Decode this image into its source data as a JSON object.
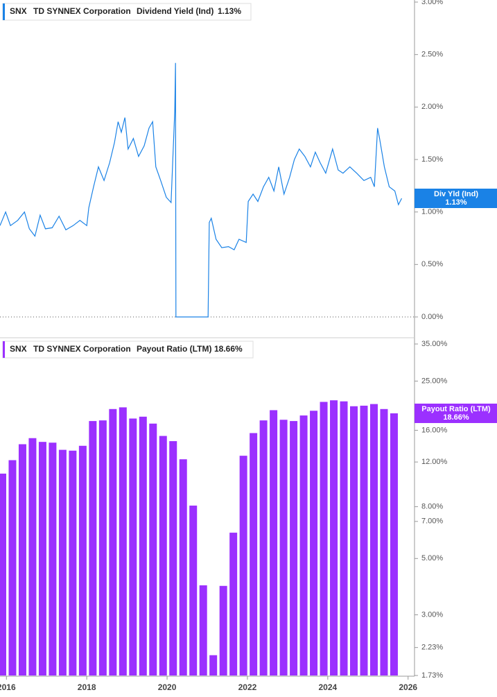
{
  "chart_data": [
    {
      "type": "line",
      "ticker": "SNX",
      "company": "TD SYNNEX Corporation",
      "x": [
        2015.84,
        2015.98,
        2016.1,
        2016.28,
        2016.45,
        2016.57,
        2016.71,
        2016.84,
        2016.97,
        2017.14,
        2017.31,
        2017.48,
        2017.66,
        2017.83,
        2018.0,
        2018.05,
        2018.17,
        2018.29,
        2018.43,
        2018.57,
        2018.69,
        2018.78,
        2018.86,
        2018.95,
        2019.03,
        2019.16,
        2019.29,
        2019.43,
        2019.55,
        2019.64,
        2019.72,
        2019.84,
        2019.98,
        2020.1,
        2020.19,
        2020.21,
        2020.22,
        2021.02,
        2021.05,
        2021.1,
        2021.22,
        2021.36,
        2021.53,
        2021.67,
        2021.79,
        2021.97,
        2022.02,
        2022.14,
        2022.26,
        2022.4,
        2022.53,
        2022.66,
        2022.78,
        2022.91,
        2023.05,
        2023.17,
        2023.29,
        2023.43,
        2023.57,
        2023.69,
        2023.81,
        2023.95,
        2024.12,
        2024.26,
        2024.38,
        2024.55,
        2024.72,
        2024.9,
        2025.07,
        2025.16,
        2025.24,
        2025.29,
        2025.41,
        2025.53,
        2025.67,
        2025.76,
        2025.84
      ],
      "series": [
        {
          "name": "Dividend Yield (Ind)",
          "short_name": "Div Yld (Ind)",
          "color": "#1a82e6",
          "last_value_label": "1.13%",
          "values": [
            0.87,
            1.0,
            0.87,
            0.92,
            1.0,
            0.84,
            0.77,
            0.97,
            0.84,
            0.85,
            0.96,
            0.83,
            0.87,
            0.92,
            0.87,
            1.04,
            1.24,
            1.43,
            1.3,
            1.47,
            1.66,
            1.86,
            1.76,
            1.9,
            1.6,
            1.7,
            1.53,
            1.63,
            1.8,
            1.86,
            1.43,
            1.3,
            1.14,
            1.09,
            1.96,
            2.42,
            0,
            0,
            0.9,
            0.94,
            0.74,
            0.66,
            0.67,
            0.64,
            0.74,
            0.71,
            1.1,
            1.17,
            1.1,
            1.24,
            1.33,
            1.2,
            1.43,
            1.17,
            1.33,
            1.5,
            1.6,
            1.53,
            1.43,
            1.57,
            1.47,
            1.37,
            1.6,
            1.4,
            1.37,
            1.43,
            1.37,
            1.3,
            1.33,
            1.24,
            1.8,
            1.7,
            1.43,
            1.24,
            1.2,
            1.07,
            1.13
          ]
        }
      ],
      "xlim": [
        2015.84,
        2026.16
      ],
      "xticks": [
        2016,
        2018,
        2020,
        2022,
        2024,
        2026
      ],
      "ylim": [
        0,
        3
      ],
      "yticks": [
        {
          "value": 0,
          "label": "0.00%"
        },
        {
          "value": 0.5,
          "label": "0.50%"
        },
        {
          "value": 1,
          "label": "1.00%"
        },
        {
          "value": 1.5,
          "label": "1.50%"
        },
        {
          "value": 2,
          "label": "2.00%"
        },
        {
          "value": 2.5,
          "label": "2.50%"
        },
        {
          "value": 3,
          "label": "3.00%"
        }
      ]
    },
    {
      "type": "bar",
      "ticker": "SNX",
      "company": "TD SYNNEX Corporation",
      "log_scale": true,
      "x": [
        2015.9,
        2016.15,
        2016.4,
        2016.65,
        2016.9,
        2017.15,
        2017.4,
        2017.65,
        2017.9,
        2018.15,
        2018.4,
        2018.65,
        2018.9,
        2019.15,
        2019.4,
        2019.65,
        2019.9,
        2020.15,
        2020.4,
        2020.65,
        2020.9,
        2021.15,
        2021.4,
        2021.65,
        2021.9,
        2022.15,
        2022.4,
        2022.65,
        2022.9,
        2023.15,
        2023.4,
        2023.65,
        2023.9,
        2024.15,
        2024.4,
        2024.65,
        2024.9,
        2025.15,
        2025.4,
        2025.65
      ],
      "series": [
        {
          "name": "Payout Ratio (LTM)",
          "color": "#9b30ff",
          "last_value_label": "18.66%",
          "values": [
            10.8,
            12.2,
            14.1,
            14.9,
            14.4,
            14.3,
            13.4,
            13.3,
            13.9,
            17.4,
            17.5,
            19.4,
            19.7,
            17.8,
            18.1,
            17.0,
            15.2,
            14.5,
            12.3,
            8.08,
            3.92,
            2.08,
            3.9,
            6.32,
            12.7,
            15.6,
            17.5,
            19.2,
            17.6,
            17.4,
            18.3,
            19.1,
            20.7,
            21.0,
            20.8,
            19.9,
            20.0,
            20.3,
            19.4,
            18.66
          ]
        }
      ],
      "xlim": [
        2015.84,
        2026.16
      ],
      "xticks": [
        2016,
        2018,
        2020,
        2022,
        2024,
        2026
      ],
      "ylim": [
        1.73,
        35
      ],
      "yticks": [
        {
          "value": 1.73,
          "label": "1.73%"
        },
        {
          "value": 2.23,
          "label": "2.23%"
        },
        {
          "value": 3,
          "label": "3.00%"
        },
        {
          "value": 5,
          "label": "5.00%"
        },
        {
          "value": 7,
          "label": "7.00%"
        },
        {
          "value": 8,
          "label": "8.00%"
        },
        {
          "value": 12,
          "label": "12.00%"
        },
        {
          "value": 16,
          "label": "16.00%"
        },
        {
          "value": 25,
          "label": "25.00%"
        },
        {
          "value": 35,
          "label": "35.00%"
        }
      ]
    }
  ]
}
